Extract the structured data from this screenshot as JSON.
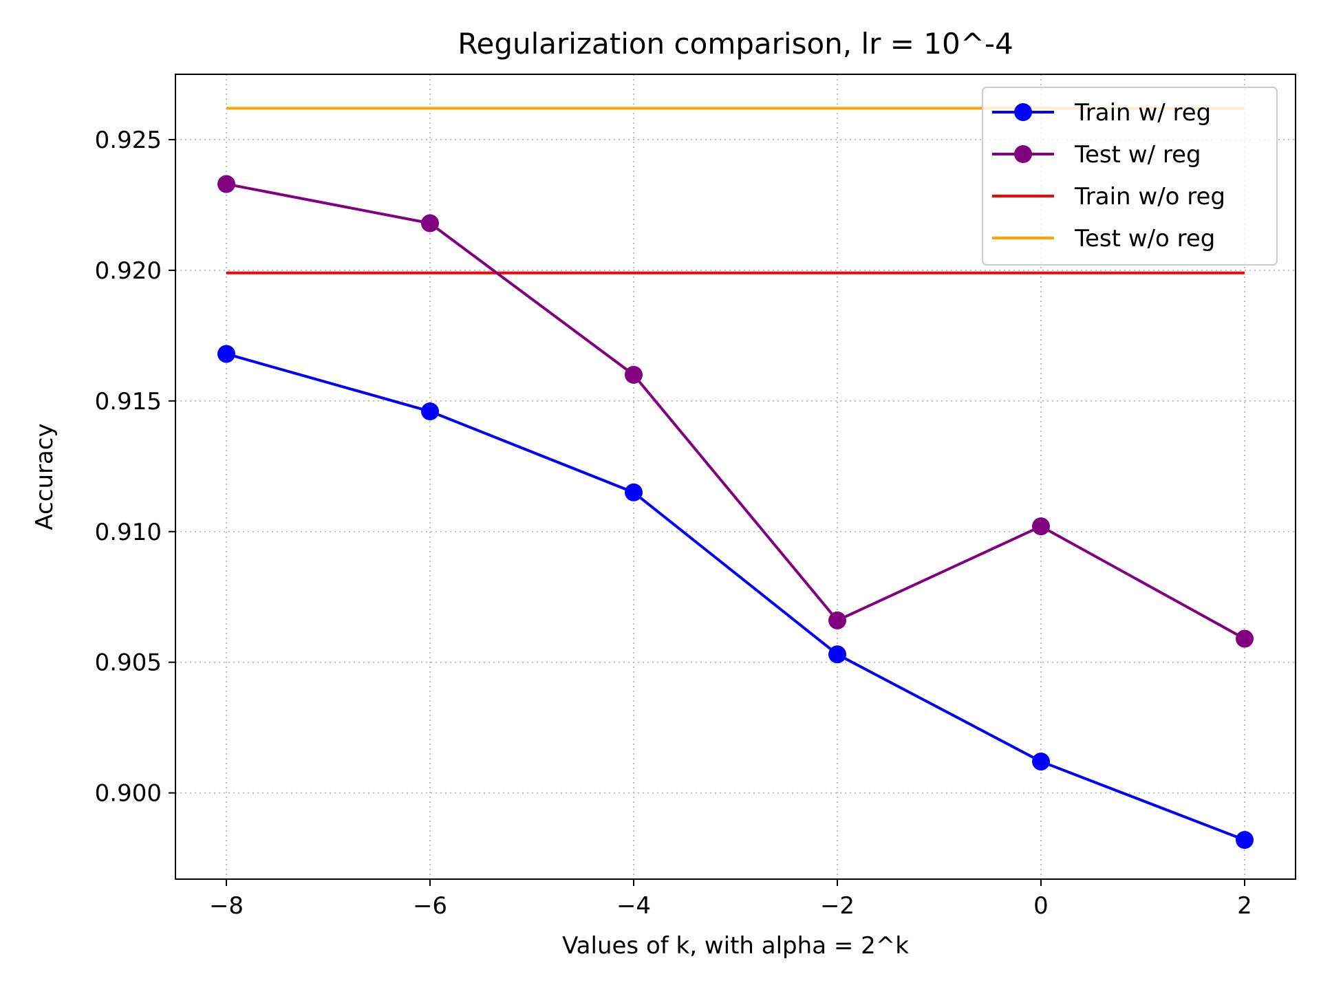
{
  "chart_data": {
    "type": "line",
    "title": "Regularization comparison, lr = 10^-4",
    "xlabel": "Values of k, with alpha = 2^k",
    "ylabel": "Accuracy",
    "x": [
      -8,
      -6,
      -4,
      -2,
      0,
      2
    ],
    "xlim": [
      -8.5,
      2.5
    ],
    "ylim": [
      0.8967,
      0.9275
    ],
    "xticks": [
      -8,
      -6,
      -4,
      -2,
      0,
      2
    ],
    "xtick_labels": [
      "−8",
      "−6",
      "−4",
      "−2",
      "0",
      "2"
    ],
    "yticks": [
      0.9,
      0.905,
      0.91,
      0.915,
      0.92,
      0.925
    ],
    "ytick_labels": [
      "0.900",
      "0.905",
      "0.910",
      "0.915",
      "0.920",
      "0.925"
    ],
    "grid": true,
    "legend_position": "top-right",
    "series": [
      {
        "name": "Train w/ reg",
        "color": "#0000ff",
        "marker": "circle",
        "values": [
          0.9168,
          0.9146,
          0.9115,
          0.9053,
          0.9012,
          0.8982
        ]
      },
      {
        "name": "Test w/ reg",
        "color": "#800080",
        "marker": "circle",
        "values": [
          0.9233,
          0.9218,
          0.916,
          0.9066,
          0.9102,
          0.9059
        ]
      },
      {
        "name": "Train w/o reg",
        "color": "#ff0000",
        "marker": "none",
        "values": [
          0.9199,
          0.9199,
          0.9199,
          0.9199,
          0.9199,
          0.9199
        ]
      },
      {
        "name": "Test w/o reg",
        "color": "#ffa500",
        "marker": "none",
        "values": [
          0.9262,
          0.9262,
          0.9262,
          0.9262,
          0.9262,
          0.9262
        ]
      }
    ]
  }
}
